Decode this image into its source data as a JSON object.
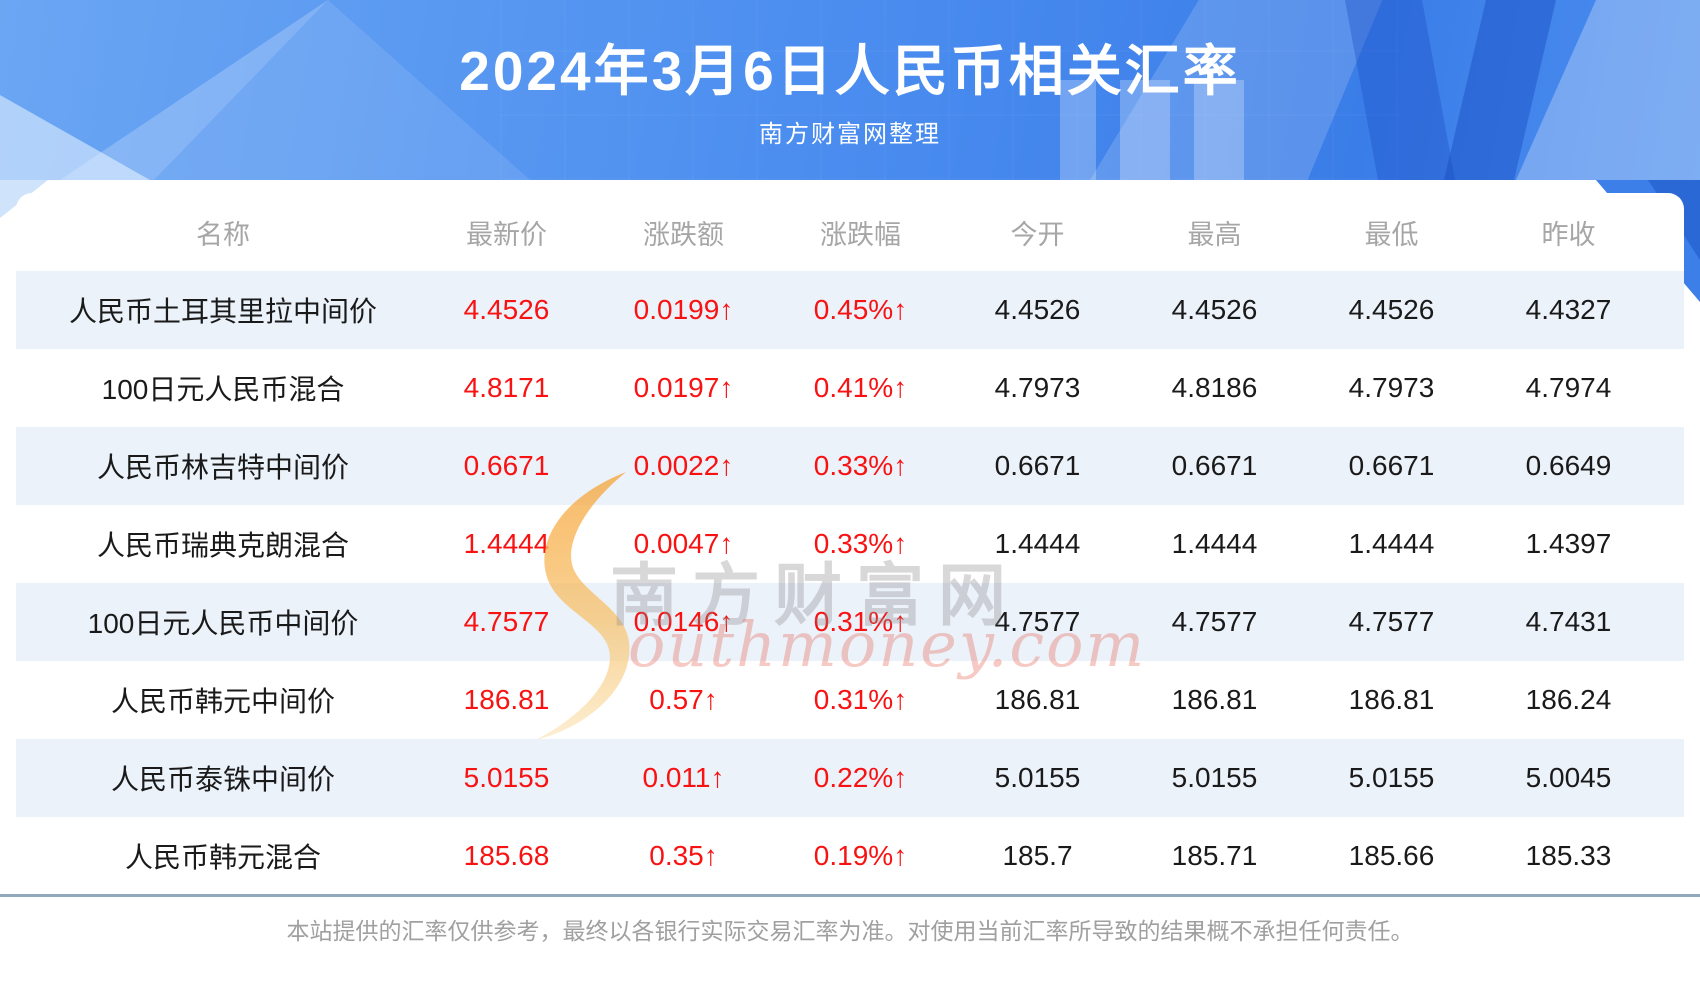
{
  "chart_data": {
    "type": "table",
    "title": "2024年3月6日人民币相关汇率",
    "subtitle": "南方财富网整理",
    "columns": [
      "名称",
      "最新价",
      "涨跌额",
      "涨跌幅",
      "今开",
      "最高",
      "最低",
      "昨收"
    ],
    "rows": [
      [
        "人民币土耳其里拉中间价",
        "4.4526",
        "0.0199↑",
        "0.45%↑",
        "4.4526",
        "4.4526",
        "4.4526",
        "4.4327"
      ],
      [
        "100日元人民币混合",
        "4.8171",
        "0.0197↑",
        "0.41%↑",
        "4.7973",
        "4.8186",
        "4.7973",
        "4.7974"
      ],
      [
        "人民币林吉特中间价",
        "0.6671",
        "0.0022↑",
        "0.33%↑",
        "0.6671",
        "0.6671",
        "0.6671",
        "0.6649"
      ],
      [
        "人民币瑞典克朗混合",
        "1.4444",
        "0.0047↑",
        "0.33%↑",
        "1.4444",
        "1.4444",
        "1.4444",
        "1.4397"
      ],
      [
        "100日元人民币中间价",
        "4.7577",
        "0.0146↑",
        "0.31%↑",
        "4.7577",
        "4.7577",
        "4.7577",
        "4.7431"
      ],
      [
        "人民币韩元中间价",
        "186.81",
        "0.57↑",
        "0.31%↑",
        "186.81",
        "186.81",
        "186.81",
        "186.24"
      ],
      [
        "人民币泰铢中间价",
        "5.0155",
        "0.011↑",
        "0.22%↑",
        "5.0155",
        "5.0155",
        "5.0155",
        "5.0045"
      ],
      [
        "人民币韩元混合",
        "185.68",
        "0.35↑",
        "0.19%↑",
        "185.7",
        "185.71",
        "185.66",
        "185.33"
      ]
    ],
    "legend": "none",
    "grid": "row-stripes"
  },
  "watermark": {
    "cn": "南方财富网",
    "en": "outhmoney.com"
  },
  "footer": {
    "disclaimer": "本站提供的汇率仅供参考，最终以各银行实际交易汇率为准。对使用当前汇率所导致的结果概不承担任何责任。"
  },
  "colors": {
    "banner_blue": "#4d8ff0",
    "stripe": "#ebf2fa",
    "up_red": "#f81212",
    "header_gray": "#a6a6a6",
    "divider": "#92a8bf"
  }
}
